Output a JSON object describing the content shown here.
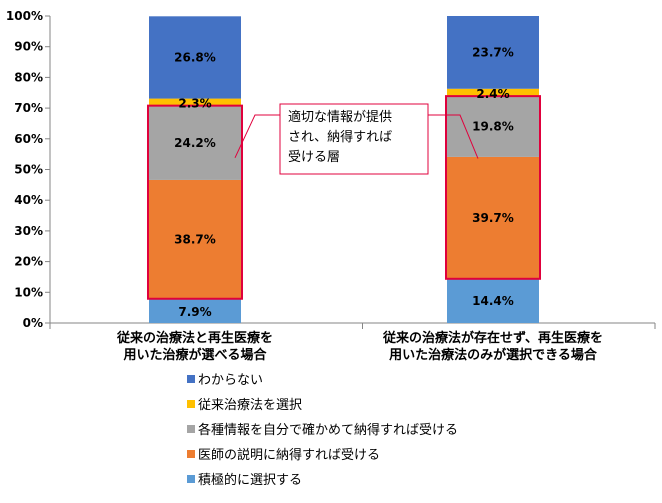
{
  "chart_data": {
    "type": "bar",
    "stacked": true,
    "categories": [
      [
        "従来の治療法と再生医療を",
        "用いた治療が選べる場合"
      ],
      [
        "従来の治療法が存在せず、再生医療を",
        "用いた治療法のみが選択できる場合"
      ]
    ],
    "series": [
      {
        "name": "積極的に選択する",
        "color": "#5B9BD5",
        "values": [
          7.9,
          14.4
        ],
        "labels": [
          "7.9%",
          "14.4%"
        ]
      },
      {
        "name": "医師の説明に納得すれば受ける",
        "color": "#ED7D31",
        "values": [
          38.7,
          39.7
        ],
        "labels": [
          "38.7%",
          "39.7%"
        ]
      },
      {
        "name": "各種情報を自分で確かめて納得すれば受ける",
        "color": "#A5A5A5",
        "values": [
          24.2,
          19.8
        ],
        "labels": [
          "24.2%",
          "19.8%"
        ]
      },
      {
        "name": "従来治療法を選択",
        "color": "#FFC000",
        "values": [
          2.3,
          2.4
        ],
        "labels": [
          "2.3%",
          "2.4%"
        ]
      },
      {
        "name": "わからない",
        "color": "#4472C4",
        "values": [
          26.8,
          23.7
        ],
        "labels": [
          "26.8%",
          "23.7%"
        ]
      }
    ],
    "ylim": [
      0,
      100
    ],
    "yticks": [
      "0%",
      "10%",
      "20%",
      "30%",
      "40%",
      "50%",
      "60%",
      "70%",
      "80%",
      "90%",
      "100%"
    ],
    "legend_position": "bottom",
    "legend_order": [
      "わからない",
      "従来治療法を選択",
      "各種情報を自分で確かめて納得すれば受ける",
      "医師の説明に納得すれば受ける",
      "積極的に選択する"
    ],
    "annotation": {
      "lines": [
        "適切な情報が提供",
        "され、納得すれば",
        "受ける層"
      ],
      "highlight_color": "#E0003C"
    },
    "grid": false
  }
}
